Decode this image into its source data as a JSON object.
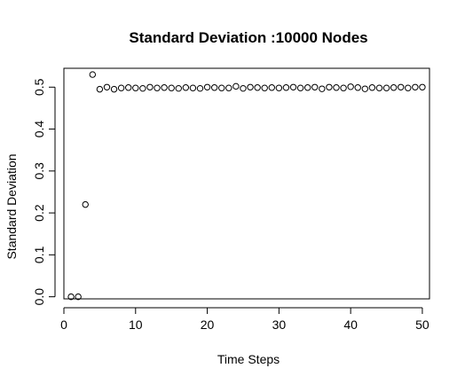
{
  "chart_data": {
    "type": "scatter",
    "title": "Standard Deviation :10000 Nodes",
    "xlabel": "Time Steps",
    "ylabel": "Standard Deviation",
    "xlim": [
      0,
      51
    ],
    "ylim": [
      -0.005,
      0.545
    ],
    "grid": false,
    "x_ticks": [
      0,
      10,
      20,
      30,
      40,
      50
    ],
    "y_ticks": [
      "0.0",
      "0.1",
      "0.2",
      "0.3",
      "0.4",
      "0.5"
    ],
    "x": [
      1,
      2,
      3,
      4,
      5,
      6,
      7,
      8,
      9,
      10,
      11,
      12,
      13,
      14,
      15,
      16,
      17,
      18,
      19,
      20,
      21,
      22,
      23,
      24,
      25,
      26,
      27,
      28,
      29,
      30,
      31,
      32,
      33,
      34,
      35,
      36,
      37,
      38,
      39,
      40,
      41,
      42,
      43,
      44,
      45,
      46,
      47,
      48,
      49,
      50
    ],
    "y": [
      0.0,
      0.0,
      0.22,
      0.53,
      0.495,
      0.5,
      0.495,
      0.498,
      0.499,
      0.498,
      0.497,
      0.5,
      0.498,
      0.499,
      0.498,
      0.497,
      0.499,
      0.498,
      0.497,
      0.5,
      0.499,
      0.498,
      0.498,
      0.502,
      0.497,
      0.5,
      0.499,
      0.498,
      0.499,
      0.498,
      0.499,
      0.5,
      0.498,
      0.499,
      0.5,
      0.496,
      0.5,
      0.499,
      0.498,
      0.501,
      0.499,
      0.496,
      0.499,
      0.498,
      0.498,
      0.499,
      0.5,
      0.498,
      0.5,
      0.5
    ],
    "marker": "open-circle",
    "marker_color": "#000000"
  }
}
